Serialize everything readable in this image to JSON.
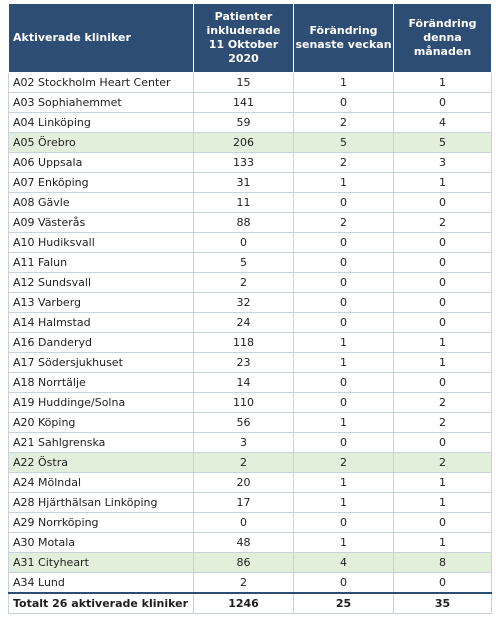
{
  "header": {
    "clinic": "Aktiverade kliniker",
    "patients": [
      "Patienter",
      "inkluderade",
      "11 Oktober 2020"
    ],
    "week": [
      "Förändring",
      "senaste veckan"
    ],
    "month": [
      "Förändring",
      "denna",
      "månaden"
    ]
  },
  "rows": [
    {
      "name": "A02 Stockholm Heart Center",
      "patients": "15",
      "week": "1",
      "month": "1",
      "highlight": false
    },
    {
      "name": "A03 Sophiahemmet",
      "patients": "141",
      "week": "0",
      "month": "0",
      "highlight": false
    },
    {
      "name": "A04 Linköping",
      "patients": "59",
      "week": "2",
      "month": "4",
      "highlight": false
    },
    {
      "name": "A05 Örebro",
      "patients": "206",
      "week": "5",
      "month": "5",
      "highlight": true
    },
    {
      "name": "A06 Uppsala",
      "patients": "133",
      "week": "2",
      "month": "3",
      "highlight": false
    },
    {
      "name": "A07 Enköping",
      "patients": "31",
      "week": "1",
      "month": "1",
      "highlight": false
    },
    {
      "name": "A08 Gävle",
      "patients": "11",
      "week": "0",
      "month": "0",
      "highlight": false
    },
    {
      "name": "A09 Västerås",
      "patients": "88",
      "week": "2",
      "month": "2",
      "highlight": false
    },
    {
      "name": "A10 Hudiksvall",
      "patients": "0",
      "week": "0",
      "month": "0",
      "highlight": false
    },
    {
      "name": "A11 Falun",
      "patients": "5",
      "week": "0",
      "month": "0",
      "highlight": false
    },
    {
      "name": "A12 Sundsvall",
      "patients": "2",
      "week": "0",
      "month": "0",
      "highlight": false
    },
    {
      "name": "A13 Varberg",
      "patients": "32",
      "week": "0",
      "month": "0",
      "highlight": false
    },
    {
      "name": "A14 Halmstad",
      "patients": "24",
      "week": "0",
      "month": "0",
      "highlight": false
    },
    {
      "name": "A16 Danderyd",
      "patients": "118",
      "week": "1",
      "month": "1",
      "highlight": false
    },
    {
      "name": "A17 Södersjukhuset",
      "patients": "23",
      "week": "1",
      "month": "1",
      "highlight": false
    },
    {
      "name": "A18 Norrtälje",
      "patients": "14",
      "week": "0",
      "month": "0",
      "highlight": false
    },
    {
      "name": "A19 Huddinge/Solna",
      "patients": "110",
      "week": "0",
      "month": "2",
      "highlight": false
    },
    {
      "name": "A20 Köping",
      "patients": "56",
      "week": "1",
      "month": "2",
      "highlight": false
    },
    {
      "name": "A21 Sahlgrenska",
      "patients": "3",
      "week": "0",
      "month": "0",
      "highlight": false
    },
    {
      "name": "A22 Östra",
      "patients": "2",
      "week": "2",
      "month": "2",
      "highlight": true
    },
    {
      "name": "A24 Mölndal",
      "patients": "20",
      "week": "1",
      "month": "1",
      "highlight": false
    },
    {
      "name": "A28 Hjärthälsan Linköping",
      "patients": "17",
      "week": "1",
      "month": "1",
      "highlight": false
    },
    {
      "name": "A29 Norrköping",
      "patients": "0",
      "week": "0",
      "month": "0",
      "highlight": false
    },
    {
      "name": "A30 Motala",
      "patients": "48",
      "week": "1",
      "month": "1",
      "highlight": false
    },
    {
      "name": "A31 Cityheart",
      "patients": "86",
      "week": "4",
      "month": "8",
      "highlight": true
    },
    {
      "name": "A34 Lund",
      "patients": "2",
      "week": "0",
      "month": "0",
      "highlight": false
    }
  ],
  "total": {
    "name": "Totalt 26 aktiverade kliniker",
    "patients": "1246",
    "week": "25",
    "month": "35"
  }
}
